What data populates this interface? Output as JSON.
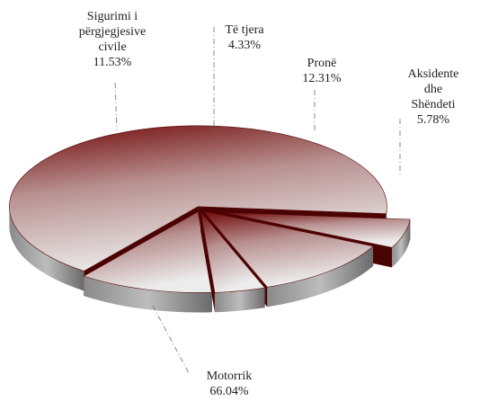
{
  "chart_data": {
    "type": "pie3d",
    "categories": [
      "Motorrik",
      "Sigurimi i\npërgjegjesive\ncivile",
      "Të tjera",
      "Pronë",
      "Aksidente dhe\nShëndeti"
    ],
    "values": [
      66.04,
      11.53,
      4.33,
      12.31,
      5.78
    ],
    "value_labels": [
      "66.04%",
      "11.53%",
      "4.33%",
      "12.31%",
      "5.78%"
    ],
    "color": "#7a0a0a"
  }
}
